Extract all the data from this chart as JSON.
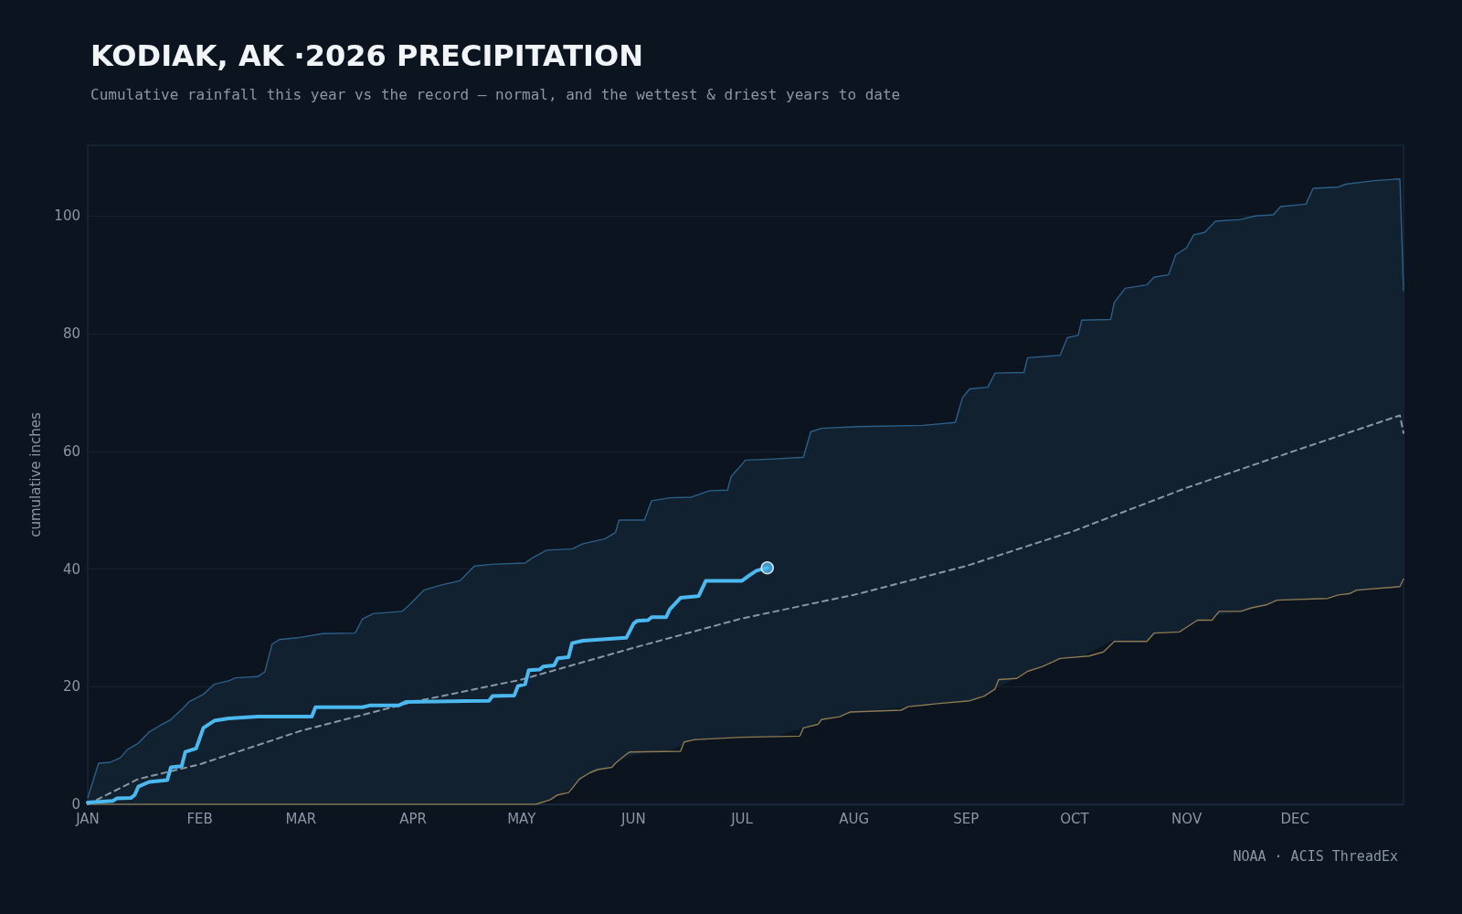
{
  "chart_data": {
    "type": "line",
    "title": "KODIAK, AK ·2026 PRECIPITATION",
    "subtitle": "Cumulative rainfall this year vs the record — normal, and the wettest & driest years to date",
    "ylabel": "cumulative inches",
    "annotations": [
      "NOAA · ACIS ThreadEx"
    ],
    "xlim": [
      "2026-01-01",
      "2026-12-31"
    ],
    "xticks": [
      {
        "value": "2026-01-01",
        "label": "JAN"
      },
      {
        "value": "2026-02-01",
        "label": "FEB"
      },
      {
        "value": "2026-03-01",
        "label": "MAR"
      },
      {
        "value": "2026-04-01",
        "label": "APR"
      },
      {
        "value": "2026-05-01",
        "label": "MAY"
      },
      {
        "value": "2026-06-01",
        "label": "JUN"
      },
      {
        "value": "2026-07-01",
        "label": "JUL"
      },
      {
        "value": "2026-08-01",
        "label": "AUG"
      },
      {
        "value": "2026-09-01",
        "label": "SEP"
      },
      {
        "value": "2026-10-01",
        "label": "OCT"
      },
      {
        "value": "2026-11-01",
        "label": "NOV"
      },
      {
        "value": "2026-12-01",
        "label": "DEC"
      }
    ],
    "ylim": [
      0,
      112
    ],
    "yticks": [
      0,
      20,
      40,
      60,
      80,
      100
    ],
    "grid": "y",
    "series": [
      {
        "color": "#2c5f88",
        "marker": "none",
        "line_style": "solid",
        "lower": [
          0,
          0,
          0,
          0,
          0,
          0,
          0,
          0,
          0,
          0,
          0,
          0,
          0,
          0,
          0,
          0,
          0,
          0,
          0,
          0,
          0,
          0,
          0,
          0,
          0,
          0,
          0,
          0,
          0,
          0,
          0,
          0,
          0,
          0.6,
          2.7,
          4.6,
          6.1,
          7,
          7.5,
          8.9,
          8.9,
          9,
          10.9,
          11.1,
          11.3,
          11.3,
          11.4,
          11.5,
          13,
          13.3,
          14.4,
          15.7,
          16.8,
          17.4,
          17.5,
          17.6,
          18.8,
          19.6,
          22.2,
          22.6,
          24.8,
          24.9,
          25.1,
          25.1,
          27.7,
          27.7,
          27.7,
          27.7,
          29.1,
          29.2,
          29.3,
          30.1,
          30.9,
          31.3,
          32,
          32.8,
          33.5,
          34.4,
          34.7,
          34.9,
          34.9,
          35.6,
          35.7,
          36.7,
          37,
          38.3
        ],
        "upper": [
          1.1,
          7,
          7.1,
          7.9,
          9.3,
          10.4,
          12.3,
          13.4,
          14.4,
          16.1,
          17.4,
          18.7,
          20.4,
          21,
          21.5,
          21.7,
          22.5,
          27.2,
          28,
          28.3,
          29,
          29.1,
          31.5,
          32.4,
          32.8,
          33.9,
          36.4,
          37.3,
          38,
          40.5,
          40.8,
          41,
          41.9,
          43.2,
          43.4,
          44.3,
          45.1,
          46.2,
          48.3,
          48.3,
          51.6,
          52.1,
          52.2,
          53.3,
          53.4,
          55.7,
          58.5,
          58.7,
          59,
          63.3,
          63.9,
          64.2,
          64.4,
          64.9,
          69.1,
          70.6,
          70.9,
          73.3,
          73.4,
          75.9,
          76.3,
          79.3,
          79.7,
          82.3,
          82.4,
          85.3,
          87.7,
          88.3,
          89.6,
          90,
          93.4,
          94.6,
          96.8,
          97.2,
          99.1,
          99.4,
          100,
          100.2,
          101.6,
          102,
          104.7,
          104.9,
          105.4,
          106,
          106.3,
          87.3
        ],
        "x": [
          "2026-01-01",
          "2026-01-04",
          "2026-01-07",
          "2026-01-10",
          "2026-01-12",
          "2026-01-15",
          "2026-01-18",
          "2026-01-21",
          "2026-01-24",
          "2026-01-27",
          "2026-01-29",
          "2026-02-02",
          "2026-02-05",
          "2026-02-09",
          "2026-02-11",
          "2026-02-17",
          "2026-02-19",
          "2026-02-21",
          "2026-02-23",
          "2026-02-28",
          "2026-03-07",
          "2026-03-16",
          "2026-03-18",
          "2026-03-21",
          "2026-03-29",
          "2026-03-31",
          "2026-04-04",
          "2026-04-09",
          "2026-04-14",
          "2026-04-18",
          "2026-04-23",
          "2026-05-02",
          "2026-05-04",
          "2026-05-08",
          "2026-05-15",
          "2026-05-18",
          "2026-05-24",
          "2026-05-27",
          "2026-05-28",
          "2026-06-04",
          "2026-06-06",
          "2026-06-11",
          "2026-06-17",
          "2026-06-22",
          "2026-06-27",
          "2026-06-28",
          "2026-07-02",
          "2026-07-10",
          "2026-07-18",
          "2026-07-20",
          "2026-07-23",
          "2026-08-02",
          "2026-08-20",
          "2026-08-29",
          "2026-08-31",
          "2026-09-02",
          "2026-09-07",
          "2026-09-09",
          "2026-09-17",
          "2026-09-18",
          "2026-09-27",
          "2026-09-29",
          "2026-10-02",
          "2026-10-03",
          "2026-10-11",
          "2026-10-12",
          "2026-10-15",
          "2026-10-21",
          "2026-10-23",
          "2026-10-27",
          "2026-10-29",
          "2026-11-01",
          "2026-11-03",
          "2026-11-06",
          "2026-11-09",
          "2026-11-16",
          "2026-11-20",
          "2026-11-25",
          "2026-11-27",
          "2026-12-04",
          "2026-12-06",
          "2026-12-13",
          "2026-12-15",
          "2026-12-23",
          "2026-12-30",
          "2026-12-31"
        ],
        "values": [
          1.1,
          7,
          7.1,
          7.9,
          9.3,
          10.4,
          12.3,
          13.4,
          14.4,
          16.1,
          17.4,
          18.7,
          20.4,
          21,
          21.5,
          21.7,
          22.5,
          27.2,
          28,
          28.3,
          29,
          29.1,
          31.5,
          32.4,
          32.8,
          33.9,
          36.4,
          37.3,
          38,
          40.5,
          40.8,
          41,
          41.9,
          43.2,
          43.4,
          44.3,
          45.1,
          46.2,
          48.3,
          48.3,
          51.6,
          52.1,
          52.2,
          53.3,
          53.4,
          55.7,
          58.5,
          58.7,
          59,
          63.3,
          63.9,
          64.2,
          64.4,
          64.9,
          69.1,
          70.6,
          70.9,
          73.3,
          73.4,
          75.9,
          76.3,
          79.3,
          79.7,
          82.3,
          82.4,
          85.3,
          87.7,
          88.3,
          89.6,
          90,
          93.4,
          94.6,
          96.8,
          97.2,
          99.1,
          99.4,
          100,
          100.2,
          101.6,
          102,
          104.7,
          104.9,
          105.4,
          106,
          106.3,
          87.3
        ]
      },
      {
        "color": "#8c7a55",
        "marker": "none",
        "line_style": "solid",
        "x": [
          "2026-01-01",
          "2026-05-05",
          "2026-05-09",
          "2026-05-11",
          "2026-05-14",
          "2026-05-15",
          "2026-05-17",
          "2026-05-20",
          "2026-05-22",
          "2026-05-26",
          "2026-05-27",
          "2026-05-30",
          "2026-05-31",
          "2026-06-14",
          "2026-06-15",
          "2026-06-18",
          "2026-07-01",
          "2026-07-17",
          "2026-07-18",
          "2026-07-22",
          "2026-07-23",
          "2026-07-28",
          "2026-07-31",
          "2026-08-14",
          "2026-08-16",
          "2026-08-24",
          "2026-09-02",
          "2026-09-06",
          "2026-09-09",
          "2026-09-10",
          "2026-09-15",
          "2026-09-18",
          "2026-09-22",
          "2026-09-25",
          "2026-09-27",
          "2026-10-05",
          "2026-10-09",
          "2026-10-12",
          "2026-10-21",
          "2026-10-23",
          "2026-10-30",
          "2026-11-01",
          "2026-11-04",
          "2026-11-08",
          "2026-11-10",
          "2026-11-16",
          "2026-11-19",
          "2026-11-23",
          "2026-11-26",
          "2026-12-10",
          "2026-12-13",
          "2026-12-16",
          "2026-12-18",
          "2026-12-28",
          "2026-12-30",
          "2026-12-31"
        ],
        "values": [
          0,
          0,
          0.8,
          1.6,
          2,
          2.7,
          4.3,
          5.4,
          5.9,
          6.3,
          7,
          8.5,
          8.9,
          9,
          10.6,
          11,
          11.4,
          11.6,
          13,
          13.6,
          14.4,
          14.9,
          15.7,
          16,
          16.6,
          17.1,
          17.6,
          18.4,
          19.6,
          21.2,
          21.4,
          22.6,
          23.4,
          24.2,
          24.8,
          25.2,
          25.9,
          27.7,
          27.7,
          29.1,
          29.3,
          30.1,
          31.3,
          31.3,
          32.8,
          32.8,
          33.4,
          33.9,
          34.7,
          35,
          35.6,
          35.8,
          36.4,
          36.9,
          37,
          38.3
        ]
      },
      {
        "color": "#8a96a3",
        "marker": "none",
        "line_style": "dashed",
        "x": [
          "2026-01-01",
          "2026-01-15",
          "2026-02-01",
          "2026-03-01",
          "2026-04-01",
          "2026-05-01",
          "2026-06-01",
          "2026-07-01",
          "2026-08-01",
          "2026-09-01",
          "2026-10-01",
          "2026-11-01",
          "2026-12-01",
          "2026-12-30",
          "2026-12-31"
        ],
        "values": [
          0,
          4.3,
          6.8,
          12.5,
          17.4,
          21.2,
          26.6,
          31.6,
          35.6,
          40.5,
          46.5,
          53.8,
          60.1,
          66.1,
          63.1
        ]
      },
      {
        "color": "#4cb8f0",
        "marker": "none",
        "line_style": "solid",
        "x": [
          "2026-01-01",
          "2026-01-08",
          "2026-01-09",
          "2026-01-13",
          "2026-01-14",
          "2026-01-15",
          "2026-01-18",
          "2026-01-23",
          "2026-01-24",
          "2026-01-27",
          "2026-01-28",
          "2026-01-31",
          "2026-02-02",
          "2026-02-05",
          "2026-02-09",
          "2026-02-17",
          "2026-03-04",
          "2026-03-05",
          "2026-03-18",
          "2026-03-20",
          "2026-03-28",
          "2026-03-30",
          "2026-04-22",
          "2026-04-23",
          "2026-04-29",
          "2026-04-30",
          "2026-05-02",
          "2026-05-03",
          "2026-05-06",
          "2026-05-07",
          "2026-05-10",
          "2026-05-11",
          "2026-05-14",
          "2026-05-15",
          "2026-05-18",
          "2026-05-27",
          "2026-05-30",
          "2026-06-01",
          "2026-06-02",
          "2026-06-05",
          "2026-06-06",
          "2026-06-10",
          "2026-06-11",
          "2026-06-14",
          "2026-06-19",
          "2026-06-21",
          "2026-07-01",
          "2026-07-03",
          "2026-07-05",
          "2026-07-08"
        ],
        "values": [
          0.3,
          0.6,
          1,
          1.1,
          1.6,
          3,
          3.8,
          4.1,
          6.3,
          6.5,
          8.9,
          9.5,
          13,
          14.2,
          14.6,
          14.9,
          14.9,
          16.5,
          16.5,
          16.8,
          16.8,
          17.4,
          17.6,
          18.4,
          18.5,
          20.1,
          20.4,
          22.8,
          22.9,
          23.4,
          23.6,
          24.8,
          25,
          27.4,
          27.8,
          28.2,
          28.3,
          30.7,
          31.2,
          31.3,
          31.8,
          31.8,
          33.1,
          35.1,
          35.4,
          38,
          38,
          38.9,
          39.7,
          40.2
        ]
      },
      {
        "type": "scatter",
        "color": "#4cb8f0",
        "marker": "circle",
        "x": [
          "2026-07-08"
        ],
        "values": [
          40.2
        ]
      }
    ]
  }
}
